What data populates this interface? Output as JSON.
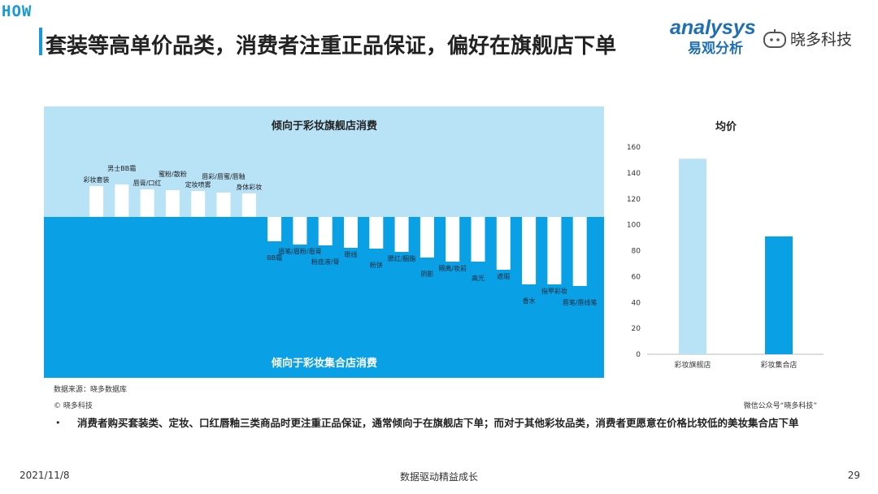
{
  "header": {
    "tag": "HOW",
    "title": "套装等高单价品类，消费者注重正品保证，偏好在旗舰店下单"
  },
  "brands": {
    "analysys_en": "analysys",
    "analysys_cn": "易观分析",
    "xiaoduo": "晓多科技"
  },
  "chart_data": [
    {
      "type": "bar",
      "top_region_label": "倾向于彩妆旗舰店消费",
      "bottom_region_label": "倾向于彩妆集合店消费",
      "categories": [
        "彩妆套装",
        "男士BB霜",
        "唇膏/口红",
        "蜜粉/散粉",
        "定妆喷雾",
        "唇彩/唇蜜/唇釉",
        "身体彩妆",
        "BB霜",
        "眉笔/眉粉/眉膏",
        "粉底液/膏",
        "眼线",
        "粉饼",
        "腮红/胭脂",
        "阴影",
        "隔离/妆前",
        "高光",
        "遮瑕",
        "香水",
        "指甲彩妆",
        "唇笔/唇线笔"
      ],
      "values": [
        3.8,
        4.0,
        3.4,
        3.3,
        3.2,
        3.0,
        2.9,
        -3.0,
        -3.4,
        -3.5,
        -3.8,
        -3.9,
        -4.3,
        -5.0,
        -5.5,
        -5.5,
        -6.5,
        -8.3,
        -8.3,
        -8.5
      ],
      "colors": {
        "top_bg": "#b8e3f7",
        "bottom_bg": "#0aa0e6",
        "bar": "#ffffff"
      },
      "grid": false
    },
    {
      "type": "bar",
      "title": "均价",
      "categories": [
        "彩妆旗舰店",
        "彩妆集合店"
      ],
      "values": [
        151,
        91
      ],
      "yticks": [
        0,
        20,
        40,
        60,
        80,
        100,
        120,
        140,
        160
      ],
      "ylim": [
        0,
        160
      ],
      "colors": [
        "#b8e3f7",
        "#0aa0e6"
      ],
      "grid": false
    }
  ],
  "notes": {
    "source": "数据来源：晓多数据库",
    "copyright": "© 晓多科技",
    "wechat": "微信公众号“晓多科技”"
  },
  "bullet": {
    "marker": "•",
    "text": "消费者购买套装类、定妆、口红唇釉三类商品时更注重正品保证，通常倾向于在旗舰店下单；而对于其他彩妆品类，消费者更愿意在价格比较低的美妆集合店下单"
  },
  "footer": {
    "date": "2021/11/8",
    "center": "数据驱动精益成长",
    "page": "29"
  }
}
